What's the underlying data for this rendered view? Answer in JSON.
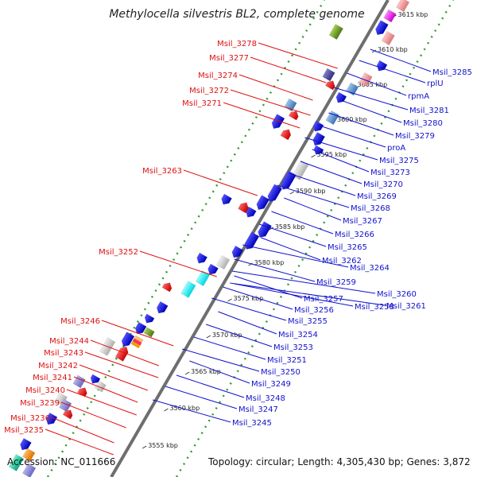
{
  "title": "Methylocella silvestris BL2, complete genome",
  "accession_label": "Accession: NC_011666",
  "summary_label": "Topology: circular; Length: 4,305,430 bp; Genes: 3,872",
  "colors": {
    "backbone": "#7a7a7a",
    "dots": "#2e9a2e",
    "left_label": "#dd1111",
    "right_label": "#1111cc",
    "plus_gene": "#ee1c1c",
    "minus_gene": "#1a1ae6",
    "rna_gene": "#9aa6d6"
  },
  "kbp_ticks": [
    "3615 kbp",
    "3610 kbp",
    "3605 kbp",
    "3600 kbp",
    "3595 kbp",
    "3590 kbp",
    "3585 kbp",
    "3580 kbp",
    "3575 kbp",
    "3570 kbp",
    "3565 kbp",
    "3560 kbp",
    "3555 kbp"
  ],
  "left_genes": [
    "Msil_3278",
    "Msil_3277",
    "Msil_3274",
    "Msil_3272",
    "Msil_3271",
    "Msil_3263",
    "Msil_3252",
    "Msil_3246",
    "Msil_3244",
    "Msil_3243",
    "Msil_3242",
    "Msil_3241",
    "Msil_3240",
    "Msil_3239",
    "Msil_3236",
    "Msil_3235"
  ],
  "right_genes": [
    "Msil_3285",
    "rplU",
    "rpmA",
    "Msil_3281",
    "Msil_3280",
    "Msil_3279",
    "proA",
    "Msil_3275",
    "Msil_3273",
    "Msil_3270",
    "Msil_3269",
    "Msil_3268",
    "Msil_3267",
    "Msil_3266",
    "Msil_3265",
    "Msil_3264",
    "Msil_3262",
    "Msil_3261",
    "Msil_3260",
    "Msil_3259",
    "Msil_3258",
    "Msil_3257",
    "Msil_3256",
    "Msil_3255",
    "Msil_3254",
    "Msil_3253",
    "Msil_3251",
    "Msil_3250",
    "Msil_3249",
    "Msil_3248",
    "Msil_3247",
    "Msil_3245"
  ]
}
